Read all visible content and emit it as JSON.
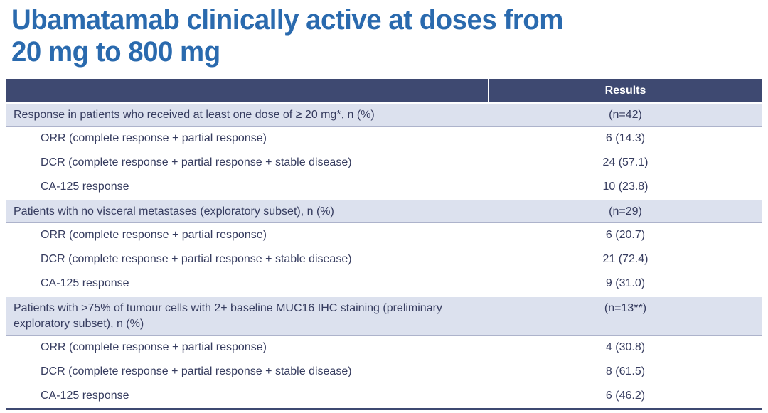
{
  "page": {
    "title_line1": "Ubamatamab clinically active at doses from",
    "title_line2": "20 mg to 800 mg"
  },
  "colors": {
    "title_blue": "#2A6AAE",
    "header_navy": "#3E4971",
    "section_row_bg": "#DCE1EE",
    "table_text": "#363C5F"
  },
  "table": {
    "header": {
      "col1": "",
      "col2": "Results"
    },
    "sections": [
      {
        "label": "Response in patients who received at least one dose of ≥ 20 mg*, n (%)",
        "n": "(n=42)",
        "rows": [
          {
            "label": "ORR (complete response + partial response)",
            "value": "6 (14.3)"
          },
          {
            "label": "DCR (complete response + partial response + stable disease)",
            "value": "24 (57.1)"
          },
          {
            "label": "CA-125 response",
            "value": "10 (23.8)"
          }
        ]
      },
      {
        "label": "Patients with no visceral metastases (exploratory subset), n (%)",
        "n": "(n=29)",
        "rows": [
          {
            "label": "ORR (complete response + partial response)",
            "value": "6 (20.7)"
          },
          {
            "label": "DCR (complete response + partial response + stable disease)",
            "value": "21 (72.4)"
          },
          {
            "label": "CA-125 response",
            "value": "9 (31.0)"
          }
        ]
      },
      {
        "label": "Patients with >75% of tumour cells with 2+ baseline MUC16 IHC staining (preliminary exploratory subset), n (%)",
        "n": "(n=13**)",
        "rows": [
          {
            "label": "ORR (complete response + partial response)",
            "value": "4 (30.8)"
          },
          {
            "label": "DCR (complete response + partial response + stable disease)",
            "value": "8 (61.5)"
          },
          {
            "label": "CA-125 response",
            "value": "6 (46.2)"
          }
        ]
      }
    ]
  }
}
